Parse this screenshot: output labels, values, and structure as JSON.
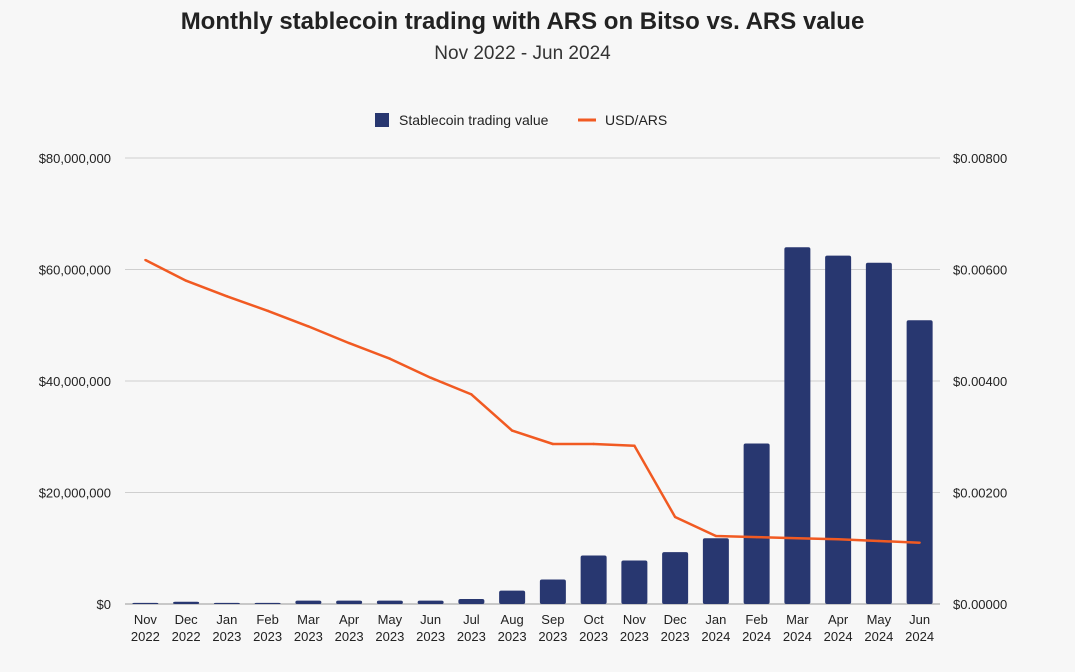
{
  "chart_data": {
    "type": "bar",
    "title": "Monthly stablecoin trading with ARS on Bitso vs. ARS value",
    "subtitle": "Nov 2022 - Jun 2024",
    "categories": [
      [
        "Nov",
        "2022"
      ],
      [
        "Dec",
        "2022"
      ],
      [
        "Jan",
        "2023"
      ],
      [
        "Feb",
        "2023"
      ],
      [
        "Mar",
        "2023"
      ],
      [
        "Apr",
        "2023"
      ],
      [
        "May",
        "2023"
      ],
      [
        "Jun",
        "2023"
      ],
      [
        "Jul",
        "2023"
      ],
      [
        "Aug",
        "2023"
      ],
      [
        "Sep",
        "2023"
      ],
      [
        "Oct",
        "2023"
      ],
      [
        "Nov",
        "2023"
      ],
      [
        "Dec",
        "2023"
      ],
      [
        "Jan",
        "2024"
      ],
      [
        "Feb",
        "2024"
      ],
      [
        "Mar",
        "2024"
      ],
      [
        "Apr",
        "2024"
      ],
      [
        "May",
        "2024"
      ],
      [
        "Jun",
        "2024"
      ]
    ],
    "series": [
      {
        "name": "Stablecoin trading value",
        "kind": "bar",
        "axis": "left",
        "color": "#283770",
        "values": [
          200000,
          400000,
          200000,
          200000,
          600000,
          600000,
          600000,
          600000,
          900000,
          2400000,
          4400000,
          8700000,
          7800000,
          9300000,
          11800000,
          28800000,
          64000000,
          62500000,
          61200000,
          50900000
        ]
      },
      {
        "name": "USD/ARS",
        "kind": "line",
        "axis": "right",
        "color": "#f15a22",
        "values": [
          0.00617,
          0.0058,
          0.00552,
          0.00526,
          0.00498,
          0.00468,
          0.0044,
          0.00406,
          0.00376,
          0.00311,
          0.00287,
          0.00287,
          0.00284,
          0.00156,
          0.00122,
          0.0012,
          0.00118,
          0.00116,
          0.00113,
          0.0011
        ]
      }
    ],
    "y_left": {
      "range": [
        0,
        80000000
      ],
      "ticks": [
        0,
        20000000,
        40000000,
        60000000,
        80000000
      ],
      "tick_labels": [
        "$0",
        "$20,000,000",
        "$40,000,000",
        "$60,000,000",
        "$80,000,000"
      ]
    },
    "y_right": {
      "range": [
        0,
        0.008
      ],
      "ticks": [
        0,
        0.002,
        0.004,
        0.006,
        0.008
      ],
      "tick_labels": [
        "$0.00000",
        "$0.00200",
        "$0.00400",
        "$0.00600",
        "$0.00800"
      ]
    },
    "grid": true,
    "legend_position": "top-center"
  }
}
